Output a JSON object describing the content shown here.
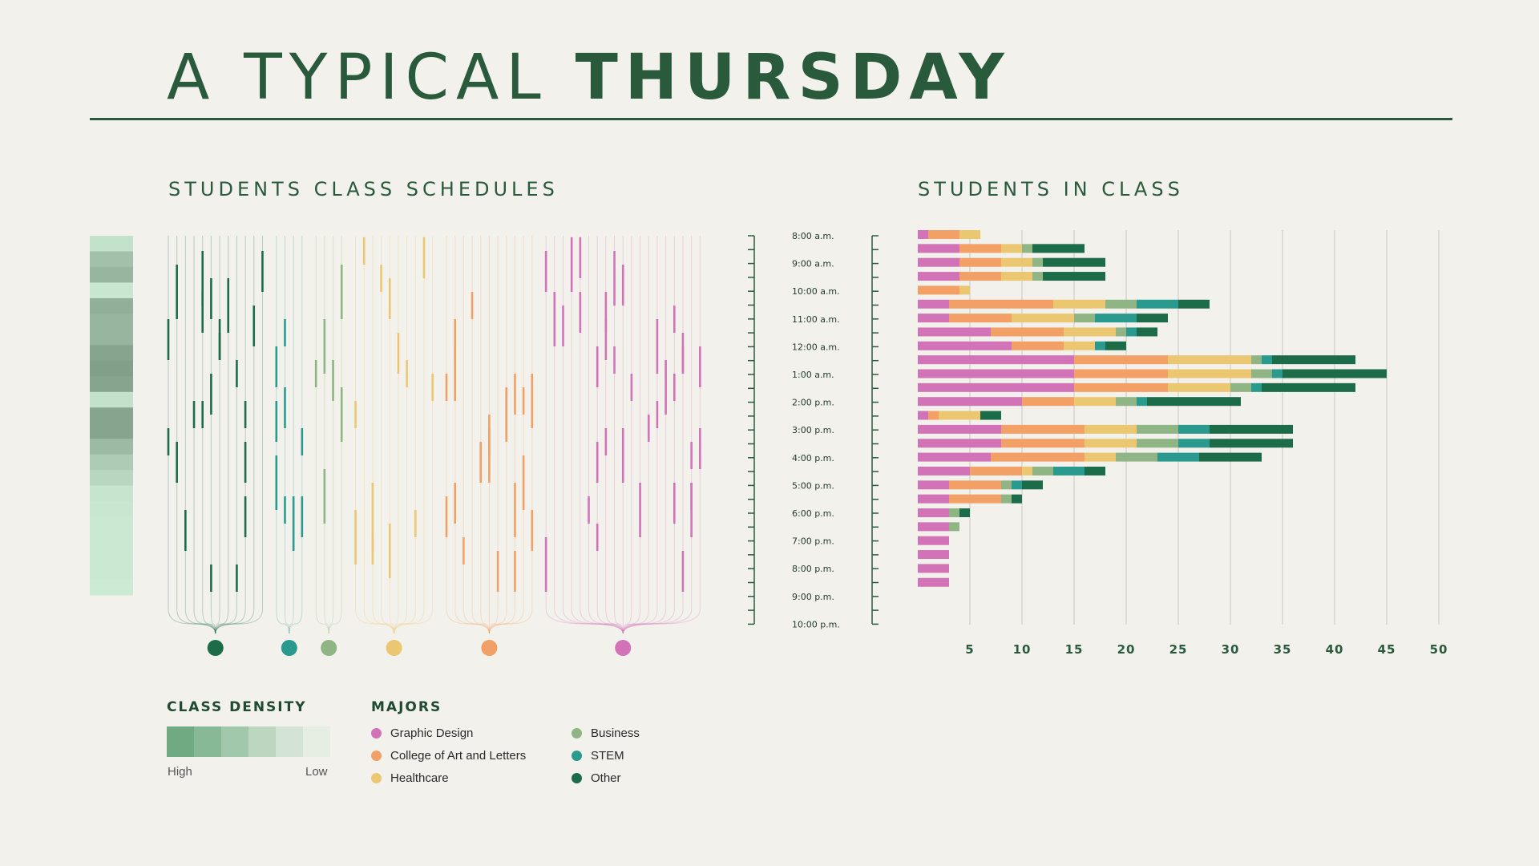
{
  "title": {
    "light": "A TYPICAL ",
    "bold": "THURSDAY"
  },
  "left_title": "STUDENTS CLASS SCHEDULES",
  "right_title": "STUDENTS IN CLASS",
  "colors": {
    "graphic_design": "#d273b8",
    "art_letters": "#f2a065",
    "healthcare": "#ecc772",
    "business": "#8fb585",
    "stem": "#2a9a8e",
    "other": "#1c6c4a",
    "accent": "#2a5a3c"
  },
  "time_labels": [
    "8:00 a.m.",
    "9:00 a.m.",
    "10:00 a.m.",
    "11:00 a.m.",
    "12:00 a.m.",
    "1:00 a.m.",
    "2:00 p.m.",
    "3:00 p.m.",
    "4:00 p.m.",
    "5:00 p.m.",
    "6:00 p.m.",
    "7:00 p.m.",
    "8:00 p.m.",
    "9:00 p.m.",
    "10:00 p.m."
  ],
  "legend": {
    "density_title": "CLASS DENSITY",
    "density_high": "High",
    "density_low": "Low",
    "density_colors": [
      "#6faa82",
      "#88b996",
      "#a2c8ab",
      "#bcd6c0",
      "#d4e4d4",
      "#e6eee3"
    ],
    "majors_title": "MAJORS",
    "majors": [
      {
        "label": "Graphic Design",
        "color": "#d273b8"
      },
      {
        "label": "College of Art and Letters",
        "color": "#f2a065"
      },
      {
        "label": "Healthcare",
        "color": "#ecc772"
      },
      {
        "label": "Business",
        "color": "#8fb585"
      },
      {
        "label": "STEM",
        "color": "#2a9a8e"
      },
      {
        "label": "Other",
        "color": "#1c6c4a"
      }
    ]
  },
  "schedule_groups": [
    {
      "major": "Other",
      "color": "#1c6c4a",
      "students": 12
    },
    {
      "major": "STEM",
      "color": "#2a9a8e",
      "students": 4
    },
    {
      "major": "Business",
      "color": "#8fb585",
      "students": 4
    },
    {
      "major": "Healthcare",
      "color": "#ecc772",
      "students": 10
    },
    {
      "major": "College of Art and Letters",
      "color": "#f2a065",
      "students": 11
    },
    {
      "major": "Graphic Design",
      "color": "#d273b8",
      "students": 19
    }
  ],
  "density_values": [
    0.15,
    0.45,
    0.55,
    0.1,
    0.6,
    0.55,
    0.55,
    0.7,
    0.75,
    0.7,
    0.15,
    0.7,
    0.7,
    0.5,
    0.35,
    0.25,
    0.12,
    0.1,
    0.08,
    0.08,
    0.08,
    0.08,
    0.06
  ],
  "chart_data": {
    "type": "bar",
    "orientation": "horizontal",
    "stacked": true,
    "xlim": [
      0,
      50
    ],
    "xticks": [
      5,
      10,
      15,
      20,
      25,
      30,
      35,
      40,
      45,
      50
    ],
    "categories": [
      "8:00",
      "8:30",
      "9:00",
      "9:30",
      "10:00",
      "10:30",
      "11:00",
      "11:30",
      "12:00",
      "12:30",
      "1:00",
      "1:30",
      "2:00",
      "2:30",
      "3:00",
      "3:30",
      "4:00",
      "4:30",
      "5:00",
      "5:30",
      "6:00",
      "6:30",
      "7:00",
      "7:30",
      "8:00",
      "8:30"
    ],
    "series": [
      {
        "name": "Graphic Design",
        "color": "#d273b8",
        "values": [
          1,
          4,
          4,
          4,
          0,
          3,
          3,
          7,
          9,
          15,
          15,
          15,
          10,
          1,
          8,
          8,
          7,
          5,
          3,
          3,
          3,
          3,
          3,
          3,
          3,
          3
        ]
      },
      {
        "name": "College of Art and Letters",
        "color": "#f2a065",
        "values": [
          3,
          4,
          4,
          4,
          4,
          10,
          6,
          7,
          5,
          9,
          9,
          9,
          5,
          1,
          8,
          8,
          9,
          5,
          5,
          5,
          0,
          0,
          0,
          0,
          0,
          0
        ]
      },
      {
        "name": "Healthcare",
        "color": "#ecc772",
        "values": [
          2,
          2,
          3,
          3,
          1,
          5,
          6,
          5,
          3,
          8,
          8,
          6,
          4,
          4,
          5,
          5,
          3,
          1,
          0,
          0,
          0,
          0,
          0,
          0,
          0,
          0
        ]
      },
      {
        "name": "Business",
        "color": "#8fb585",
        "values": [
          0,
          1,
          1,
          1,
          0,
          3,
          2,
          1,
          0,
          1,
          2,
          2,
          2,
          0,
          4,
          4,
          4,
          2,
          1,
          1,
          1,
          1,
          0,
          0,
          0,
          0
        ]
      },
      {
        "name": "STEM",
        "color": "#2a9a8e",
        "values": [
          0,
          0,
          0,
          0,
          0,
          4,
          4,
          1,
          1,
          1,
          1,
          1,
          1,
          0,
          3,
          3,
          4,
          3,
          1,
          0,
          0,
          0,
          0,
          0,
          0,
          0
        ]
      },
      {
        "name": "Other",
        "color": "#1c6c4a",
        "values": [
          0,
          5,
          6,
          6,
          0,
          3,
          3,
          2,
          2,
          8,
          10,
          9,
          9,
          2,
          8,
          8,
          6,
          2,
          2,
          1,
          1,
          0,
          0,
          0,
          0,
          0
        ]
      }
    ]
  }
}
